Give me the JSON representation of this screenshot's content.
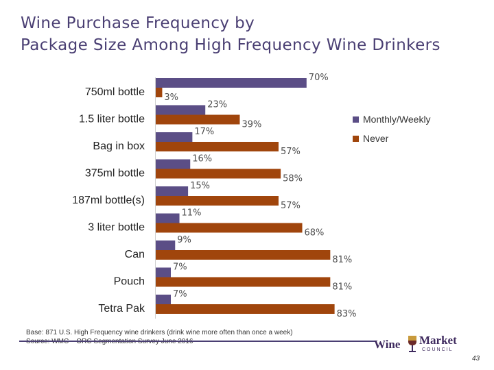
{
  "title_lines": [
    "Wine Purchase Frequency by",
    "Package Size Among High Frequency Wine Drinkers"
  ],
  "chart_data": {
    "type": "bar",
    "orientation": "horizontal",
    "title": "Wine Purchase Frequency by Package Size Among High Frequency Wine Drinkers",
    "categories": [
      "750ml bottle",
      "1.5 liter bottle",
      "Bag in box",
      "375ml bottle",
      "187ml bottle(s)",
      "3 liter bottle",
      "Can",
      "Pouch",
      "Tetra Pak"
    ],
    "series": [
      {
        "name": "Monthly/Weekly",
        "color": "#5b4e86",
        "values": [
          70,
          23,
          17,
          16,
          15,
          11,
          9,
          7,
          7
        ]
      },
      {
        "name": "Never",
        "color": "#a0450c",
        "values": [
          3,
          39,
          57,
          58,
          57,
          68,
          81,
          81,
          83
        ]
      }
    ],
    "value_suffix": "%",
    "xlim": [
      0,
      100
    ],
    "grid": false,
    "legend_position": "right"
  },
  "footer": {
    "line1": "Base: 871 U.S. High Frequency wine drinkers (drink wine more often than once a week)",
    "line2": "Source: WMC – ORC Segmentation Survey June 2016"
  },
  "logo": {
    "word1": "Wine",
    "word2": "Market",
    "word3": "COUNCIL"
  },
  "page_number": "43"
}
